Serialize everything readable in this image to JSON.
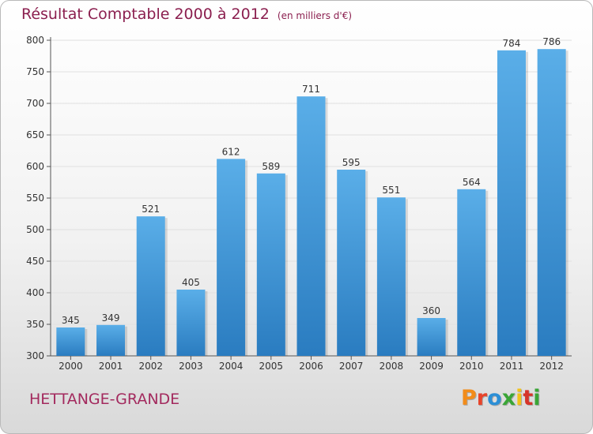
{
  "header": {
    "title": "Résultat Comptable 2000 à 2012",
    "unit": "(en milliers d'€)"
  },
  "footer": {
    "town": "HETTANGE-GRANDE",
    "logo": "Proxiti"
  },
  "colors": {
    "bar_light": "#5aaee8",
    "bar_dark": "#2a7cc0",
    "title": "#8b1f4f",
    "town": "#a32a5e"
  },
  "chart_data": {
    "type": "bar",
    "title": "Résultat Comptable 2000 à 2012",
    "subtitle": "(en milliers d'€)",
    "categories": [
      "2000",
      "2001",
      "2002",
      "2003",
      "2004",
      "2005",
      "2006",
      "2007",
      "2008",
      "2009",
      "2010",
      "2011",
      "2012"
    ],
    "values": [
      345,
      349,
      521,
      405,
      612,
      589,
      711,
      595,
      551,
      360,
      564,
      784,
      786
    ],
    "ylim": [
      300,
      800
    ],
    "yticks": [
      300,
      350,
      400,
      450,
      500,
      550,
      600,
      650,
      700,
      750,
      800
    ],
    "grid": true,
    "legend": "none"
  }
}
